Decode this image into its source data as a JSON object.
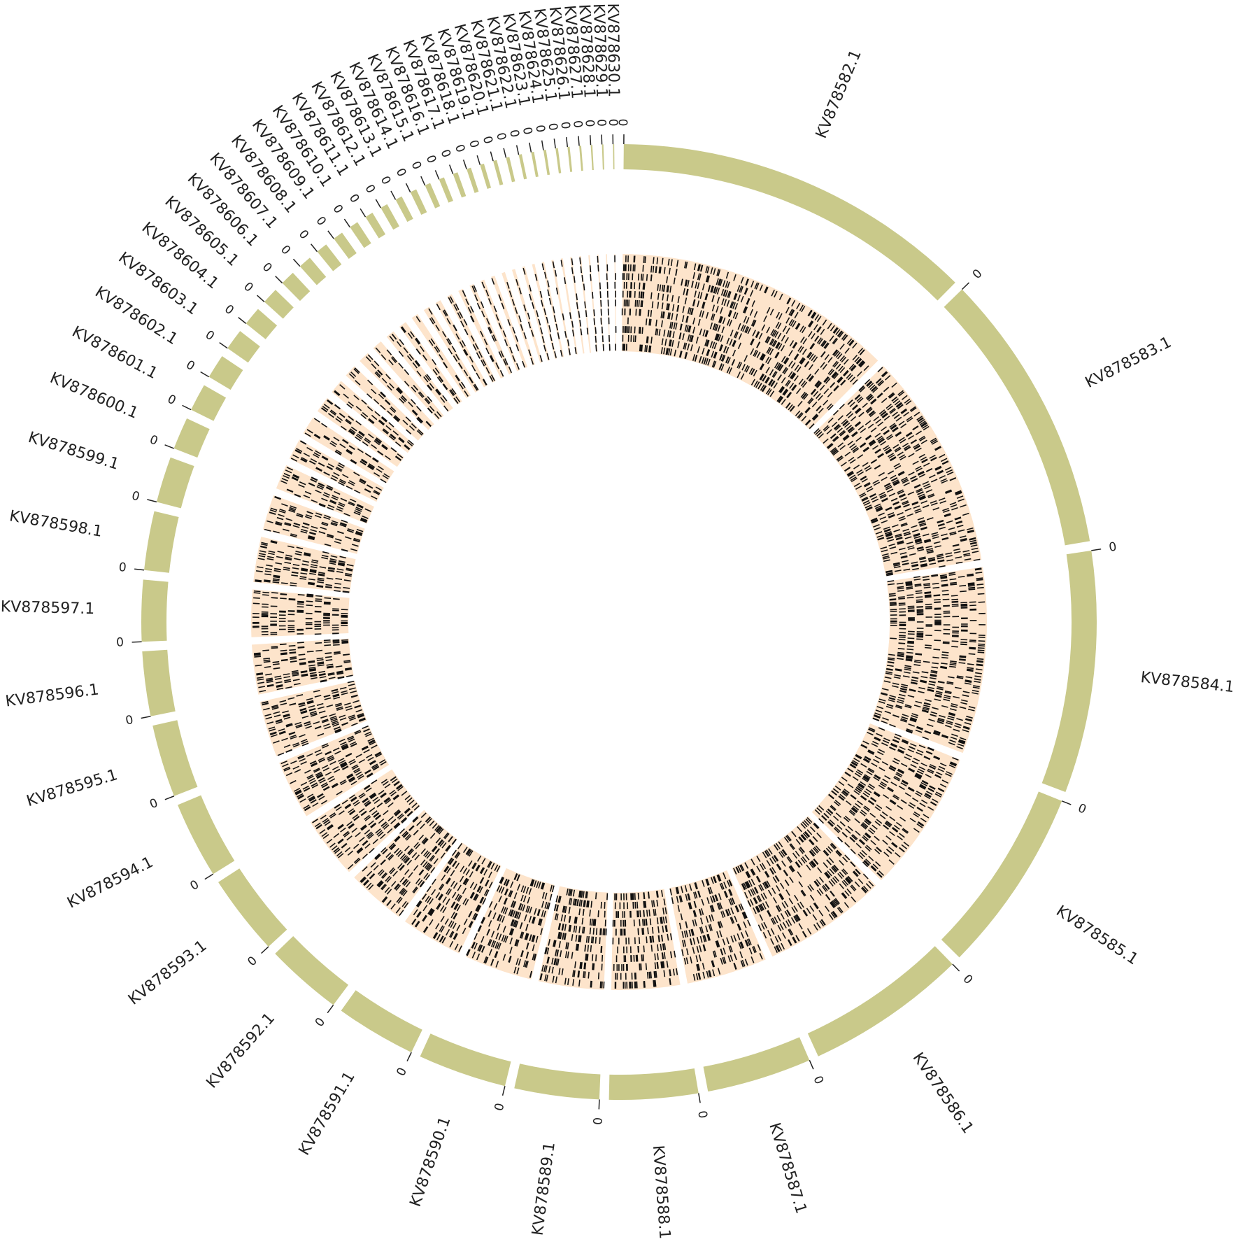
{
  "chart_data": {
    "type": "circos",
    "categories": [
      "KV878582.1",
      "KV878583.1",
      "KV878584.1",
      "KV878585.1",
      "KV878586.1",
      "KV878587.1",
      "KV878588.1",
      "KV878589.1",
      "KV878590.1",
      "KV878591.1",
      "KV878592.1",
      "KV878593.1",
      "KV878594.1",
      "KV878595.1",
      "KV878596.1",
      "KV878597.1",
      "KV878598.1",
      "KV878599.1",
      "KV878600.1",
      "KV878601.1",
      "KV878602.1",
      "KV878603.1",
      "KV878604.1",
      "KV878605.1",
      "KV878606.1",
      "KV878607.1",
      "KV878608.1",
      "KV878609.1",
      "KV878610.1",
      "KV878611.1",
      "KV878612.1",
      "KV878613.1",
      "KV878614.1",
      "KV878615.1",
      "KV878616.1",
      "KV878617.1",
      "KV878618.1",
      "KV878619.1",
      "KV878620.1",
      "KV878621.1",
      "KV878622.1",
      "KV878623.1",
      "KV878624.1",
      "KV878625.1",
      "KV878626.1",
      "KV878627.1",
      "KV878628.1",
      "KV878629.1",
      "KV878630.1"
    ],
    "values": [
      45,
      35,
      30,
      23,
      20,
      13,
      11,
      10.5,
      11,
      10,
      9.5,
      10,
      9.5,
      9,
      8,
      7.6,
      7.3,
      5.7,
      4,
      3.4,
      3,
      2.6,
      2.3,
      2,
      1.8,
      1.6,
      1.4,
      1.25,
      1.1,
      1,
      0.9,
      0.85,
      0.8,
      0.7,
      0.65,
      0.6,
      0.55,
      0.5,
      0.45,
      0.42,
      0.38,
      0.35,
      0.32,
      0.3,
      0.27,
      0.24,
      0.2,
      0.18,
      0.15
    ],
    "start_tick": 0,
    "color": "#c9c98a",
    "track_color": "#fde4cb"
  }
}
